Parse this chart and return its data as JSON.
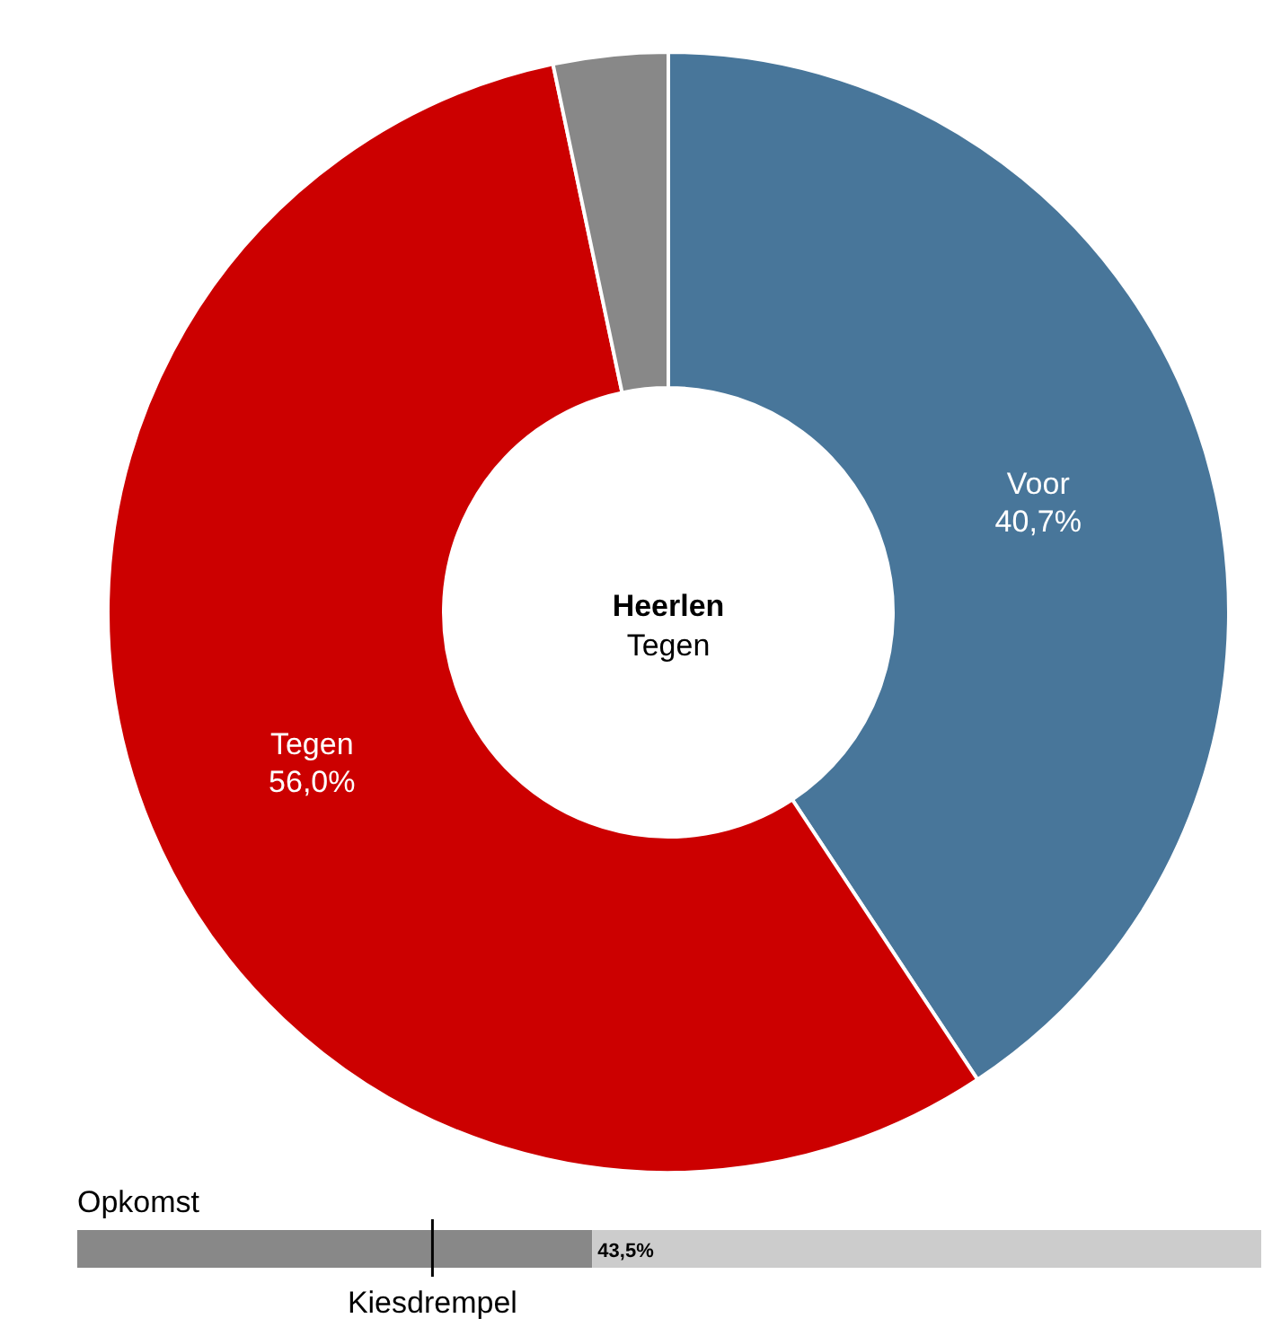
{
  "chart_data": [
    {
      "type": "donut",
      "title": "Heerlen",
      "subtitle": "Tegen",
      "categories": [
        "Voor",
        "Tegen",
        null
      ],
      "values": [
        40.7,
        56.0,
        3.3
      ],
      "colors": [
        "#48769a",
        "#cc0000",
        "#888888"
      ],
      "value_labels": [
        "40,7%",
        "56,0%",
        null
      ]
    },
    {
      "type": "bar",
      "orientation": "horizontal",
      "stacked": true,
      "title": "Opkomst",
      "categories": [
        null
      ],
      "xlim": [
        0,
        100
      ],
      "ref_lines": [
        {
          "axis": "x",
          "value": 30,
          "label": "Kiesdrempel",
          "color": "#000000"
        }
      ],
      "series": [
        {
          "values": [
            43.5
          ],
          "color": "#888888",
          "value_labels": [
            "43,5%"
          ]
        },
        {
          "values": [
            56.5
          ],
          "color": "#cccccc"
        }
      ]
    }
  ]
}
